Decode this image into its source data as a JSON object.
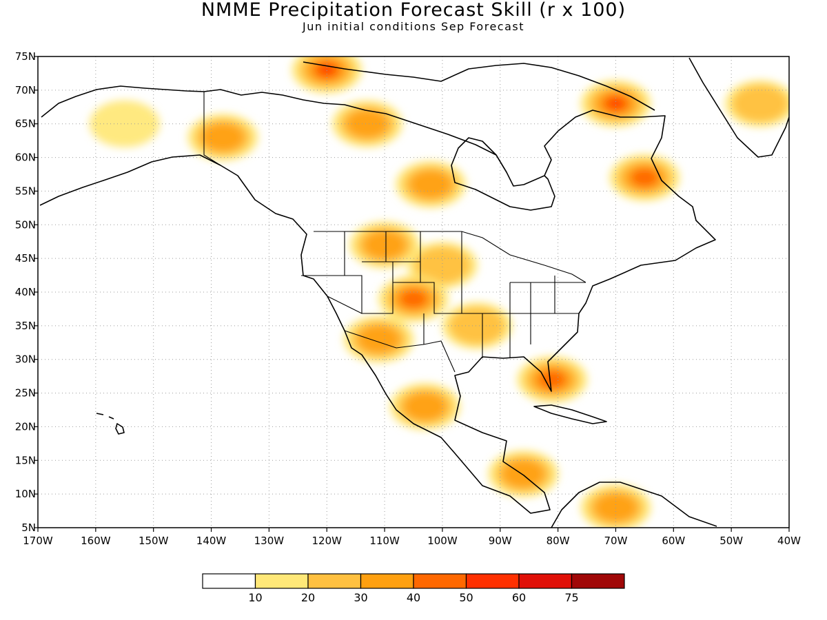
{
  "title": "NMME Precipitation Forecast Skill (r x 100)",
  "subtitle": "Jun initial conditions  Sep Forecast",
  "map": {
    "lon_range": [
      -170,
      -40
    ],
    "lat_range": [
      5,
      75
    ],
    "lon_tick_labels": [
      "170W",
      "160W",
      "150W",
      "140W",
      "130W",
      "120W",
      "110W",
      "100W",
      "90W",
      "80W",
      "70W",
      "60W",
      "50W",
      "40W"
    ],
    "lat_tick_labels": [
      "5N",
      "10N",
      "15N",
      "20N",
      "25N",
      "30N",
      "35N",
      "40N",
      "45N",
      "50N",
      "55N",
      "60N",
      "65N",
      "70N",
      "75N"
    ],
    "grid": true,
    "skill_regions": [
      {
        "region": "alaska-interior",
        "lon": -155,
        "lat": 65,
        "value": 15
      },
      {
        "region": "yukon",
        "lon": -138,
        "lat": 63,
        "value": 30
      },
      {
        "region": "northwest-territories",
        "lon": -113,
        "lat": 65,
        "value": 30
      },
      {
        "region": "arctic-islands-west",
        "lon": -120,
        "lat": 73,
        "value": 50
      },
      {
        "region": "baffin-island",
        "lon": -70,
        "lat": 68,
        "value": 55
      },
      {
        "region": "labrador",
        "lon": -65,
        "lat": 57,
        "value": 40
      },
      {
        "region": "greenland",
        "lon": -45,
        "lat": 68,
        "value": 20
      },
      {
        "region": "hudson-bay-west",
        "lon": -102,
        "lat": 56,
        "value": 30
      },
      {
        "region": "montana",
        "lon": -110,
        "lat": 47,
        "value": 30
      },
      {
        "region": "dakotas",
        "lon": -100,
        "lat": 44,
        "value": 25
      },
      {
        "region": "colorado",
        "lon": -105,
        "lat": 39,
        "value": 45
      },
      {
        "region": "arizona",
        "lon": -111,
        "lat": 33,
        "value": 35
      },
      {
        "region": "mexico-central",
        "lon": -103,
        "lat": 23,
        "value": 35
      },
      {
        "region": "arkansas",
        "lon": -94,
        "lat": 35,
        "value": 25
      },
      {
        "region": "florida",
        "lon": -81,
        "lat": 27,
        "value": 40
      },
      {
        "region": "nicaragua",
        "lon": -86,
        "lat": 13,
        "value": 35
      },
      {
        "region": "colombia-venezuela",
        "lon": -70,
        "lat": 8,
        "value": 35
      }
    ]
  },
  "colorbar": {
    "labels": [
      "10",
      "20",
      "30",
      "40",
      "50",
      "60",
      "75"
    ],
    "colors": [
      "#ffffff",
      "#ffe878",
      "#ffc040",
      "#ffa010",
      "#ff6800",
      "#ff3000",
      "#e01008",
      "#a00808"
    ]
  }
}
